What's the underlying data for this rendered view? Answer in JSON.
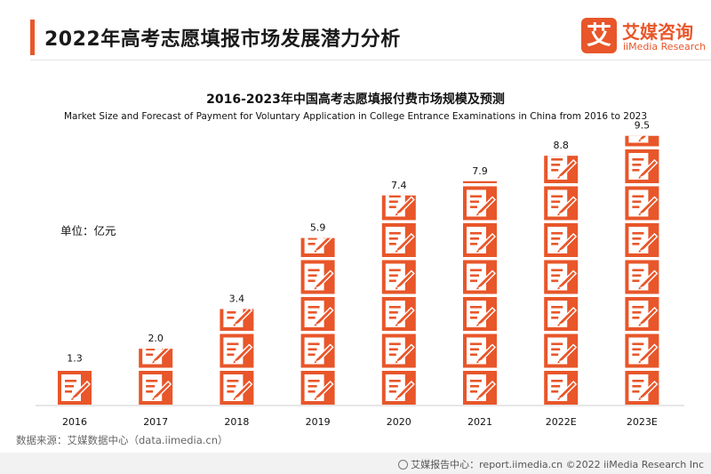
{
  "header": {
    "title": "2022年高考志愿填报市场发展潜力分析",
    "logo_cn": "艾媒咨询",
    "logo_en": "iiMedia Research",
    "logo_mark": "艾"
  },
  "colors": {
    "accent": "#e8562a",
    "icon_fill": "#e8562a",
    "axis": "#cccccc"
  },
  "chart_data": {
    "type": "bar",
    "style": "pictograph",
    "icon": "document-pencil-icon",
    "title": "2016-2023年中国高考志愿填报付费市场规模及预测",
    "subtitle": "Market Size and Forecast of Payment for Voluntary Application in College Entrance Examinations in China from 2016 to 2023",
    "unit_label": "单位：亿元",
    "categories": [
      "2016",
      "2017",
      "2018",
      "2019",
      "2020",
      "2021",
      "2022E",
      "2023E"
    ],
    "values": [
      1.3,
      2.0,
      3.4,
      5.9,
      7.4,
      7.9,
      8.8,
      9.5
    ],
    "data_labels": [
      "1.3",
      "2.0",
      "3.4",
      "5.9",
      "7.4",
      "7.9",
      "8.8",
      "9.5"
    ],
    "grid": false,
    "legend": "none"
  },
  "footer": {
    "source": "数据来源：艾媒数据中心（data.iimedia.cn）",
    "right_text": "艾媒报告中心：report.iimedia.cn  ©2022  iiMedia Research  Inc"
  }
}
